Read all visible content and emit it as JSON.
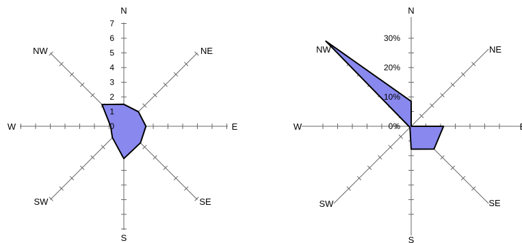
{
  "chart_data": [
    {
      "type": "radar",
      "directions": [
        "N",
        "NE",
        "E",
        "SE",
        "S",
        "SW",
        "W",
        "NW"
      ],
      "radial_axis": {
        "min": 0,
        "max": 7,
        "ticks": [
          "0",
          "1",
          "2",
          "3",
          "4",
          "5",
          "6",
          "7"
        ]
      },
      "series": [
        {
          "values": [
            1.5,
            1.4,
            1.5,
            1.6,
            2.2,
            1.1,
            0.9,
            2.1
          ]
        }
      ],
      "fill_color": "#8888ee",
      "line_color": "#000000"
    },
    {
      "type": "radar",
      "directions": [
        "N",
        "NE",
        "E",
        "SE",
        "S",
        "SW",
        "W",
        "NW"
      ],
      "radial_axis": {
        "min": 0,
        "max": 40,
        "unit": "%",
        "ticks": [
          "0%",
          "10%",
          "20%",
          "30%"
        ]
      },
      "series": [
        {
          "values": [
            8.5,
            0,
            11,
            11,
            7.8,
            0.6,
            0.8,
            41
          ]
        }
      ],
      "fill_color": "#8888ee",
      "line_color": "#000000"
    }
  ]
}
